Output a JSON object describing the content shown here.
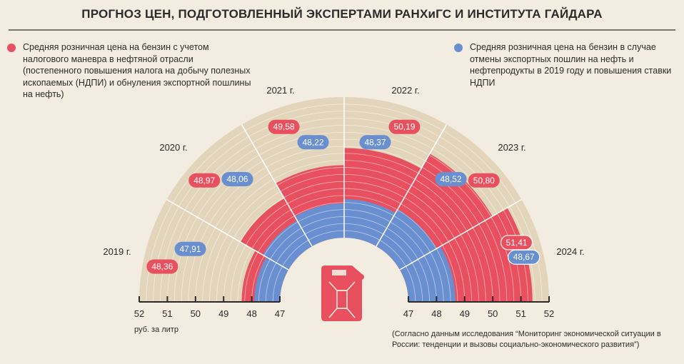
{
  "title": "ПРОГНОЗ ЦЕН, ПОДГОТОВЛЕННЫЙ ЭКСПЕРТАМИ РАНХиГС И ИНСТИТУТА ГАЙДАРА",
  "legend": {
    "red": "Средняя розничная цена на бензин с учетом налогового маневра в нефтяной отрасли (постепенного повышения налога на добычу полезных ископаемых (НДПИ) и обнуления экспортной пошлины на нефть)",
    "blue": "Средняя розничная цена на бензин в случае отмены экспортных пошлин на нефть и нефтепродукты в 2019 году и повышения ставки НДПИ"
  },
  "unit_label": "руб. за литр",
  "source": "(Согласно данным исследования “Мониторинг экономической ситуации в России: тенденции и вызовы социально-экономического развития”)",
  "chart_data": {
    "type": "radial-bar",
    "title": "ПРОГНОЗ ЦЕН, ПОДГОТОВЛЕННЫЙ ЭКСПЕРТАМИ РАНХиГС И ИНСТИТУТА ГАЙДАРА",
    "categories": [
      "2019 г.",
      "2020 г.",
      "2021 г.",
      "2022 г.",
      "2023 г.",
      "2024 г."
    ],
    "series": [
      {
        "name": "Средняя розничная цена на бензин с учетом налогового маневра",
        "color": "#e8505f",
        "values": [
          48.36,
          48.97,
          49.58,
          50.19,
          50.8,
          51.41
        ],
        "labels": [
          "48,36",
          "48,97",
          "49,58",
          "50,19",
          "50,80",
          "51,41"
        ]
      },
      {
        "name": "Средняя розничная цена на бензин в случае отмены экспортных пошлин",
        "color": "#6a8fd0",
        "values": [
          47.91,
          48.06,
          48.22,
          48.37,
          48.52,
          48.67
        ],
        "labels": [
          "47,91",
          "48,06",
          "48,22",
          "48,37",
          "48,52",
          "48,67"
        ]
      }
    ],
    "radial_range": [
      47,
      52
    ],
    "ticks_left": [
      "52",
      "51",
      "50",
      "49",
      "48",
      "47"
    ],
    "ticks_right": [
      "47",
      "48",
      "49",
      "50",
      "51",
      "52"
    ],
    "background_color": "#e2d5bb",
    "unit": "руб. за литр"
  }
}
